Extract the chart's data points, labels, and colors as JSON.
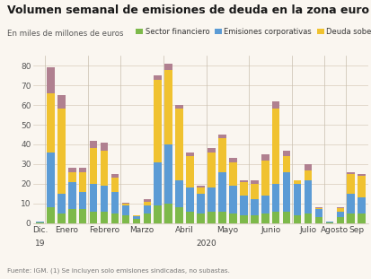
{
  "title": "Volumen semanal de emisiones de deuda en la zona euro",
  "subtitle": "En miles de millones de euros",
  "footnote": "Fuente: IGM. (1) Se incluyen solo emisiones sindicadas, no subastas.",
  "colors": {
    "financiero": "#7db94a",
    "corporativas": "#5b9bd5",
    "soberana": "#f0c230",
    "otro": "#b08090"
  },
  "background_color": "#faf6f0",
  "bars": [
    {
      "fin": 0.5,
      "corp": 0.3,
      "sob": 0.2,
      "otro": 0
    },
    {
      "fin": 8,
      "corp": 28,
      "sob": 30,
      "otro": 13
    },
    {
      "fin": 5,
      "corp": 10,
      "sob": 43,
      "otro": 7
    },
    {
      "fin": 7,
      "corp": 14,
      "sob": 5,
      "otro": 2
    },
    {
      "fin": 7,
      "corp": 9,
      "sob": 10,
      "otro": 2
    },
    {
      "fin": 6,
      "corp": 14,
      "sob": 18,
      "otro": 4
    },
    {
      "fin": 6,
      "corp": 13,
      "sob": 18,
      "otro": 4
    },
    {
      "fin": 5,
      "corp": 11,
      "sob": 7,
      "otro": 2
    },
    {
      "fin": 4,
      "corp": 5,
      "sob": 1,
      "otro": 0.5
    },
    {
      "fin": 2,
      "corp": 1.5,
      "sob": 0.3,
      "otro": 0.2
    },
    {
      "fin": 5,
      "corp": 4,
      "sob": 2,
      "otro": 1
    },
    {
      "fin": 9,
      "corp": 22,
      "sob": 42,
      "otro": 2
    },
    {
      "fin": 10,
      "corp": 30,
      "sob": 38,
      "otro": 3
    },
    {
      "fin": 8,
      "corp": 14,
      "sob": 36,
      "otro": 2
    },
    {
      "fin": 6,
      "corp": 12,
      "sob": 16,
      "otro": 2
    },
    {
      "fin": 5,
      "corp": 10,
      "sob": 3,
      "otro": 1
    },
    {
      "fin": 6,
      "corp": 12,
      "sob": 18,
      "otro": 2
    },
    {
      "fin": 6,
      "corp": 20,
      "sob": 17,
      "otro": 2
    },
    {
      "fin": 5,
      "corp": 14,
      "sob": 12,
      "otro": 2
    },
    {
      "fin": 4,
      "corp": 10,
      "sob": 7,
      "otro": 1
    },
    {
      "fin": 4,
      "corp": 8,
      "sob": 8,
      "otro": 2
    },
    {
      "fin": 5,
      "corp": 9,
      "sob": 18,
      "otro": 3
    },
    {
      "fin": 6,
      "corp": 14,
      "sob": 38,
      "otro": 4
    },
    {
      "fin": 6,
      "corp": 20,
      "sob": 8,
      "otro": 3
    },
    {
      "fin": 4,
      "corp": 16,
      "sob": 2,
      "otro": 0
    },
    {
      "fin": 5,
      "corp": 17,
      "sob": 5,
      "otro": 3
    },
    {
      "fin": 3,
      "corp": 4,
      "sob": 0.5,
      "otro": 0.5
    },
    {
      "fin": 0.3,
      "corp": 0.5,
      "sob": 0.2,
      "otro": 0
    },
    {
      "fin": 3,
      "corp": 3,
      "sob": 1.5,
      "otro": 0.5
    },
    {
      "fin": 5,
      "corp": 10,
      "sob": 10,
      "otro": 1
    },
    {
      "fin": 5,
      "corp": 8,
      "sob": 11,
      "otro": 1
    }
  ],
  "month_info": [
    [
      "Dic.",
      [
        0
      ]
    ],
    [
      "Enero",
      [
        1,
        2,
        3,
        4
      ]
    ],
    [
      "Febrero",
      [
        5,
        6,
        7
      ]
    ],
    [
      "Marzo",
      [
        8,
        9,
        10,
        11
      ]
    ],
    [
      "Abril",
      [
        12,
        13,
        14,
        15
      ]
    ],
    [
      "Mayo",
      [
        16,
        17,
        18,
        19
      ]
    ],
    [
      "Junio",
      [
        20,
        21,
        22,
        23
      ]
    ],
    [
      "Julio",
      [
        24,
        25,
        26
      ]
    ],
    [
      "Agosto",
      [
        27,
        28
      ]
    ],
    [
      "Sep",
      [
        29,
        30
      ]
    ]
  ],
  "ylim": [
    0,
    85
  ],
  "yticks": [
    0,
    10,
    20,
    30,
    40,
    50,
    60,
    70,
    80
  ]
}
